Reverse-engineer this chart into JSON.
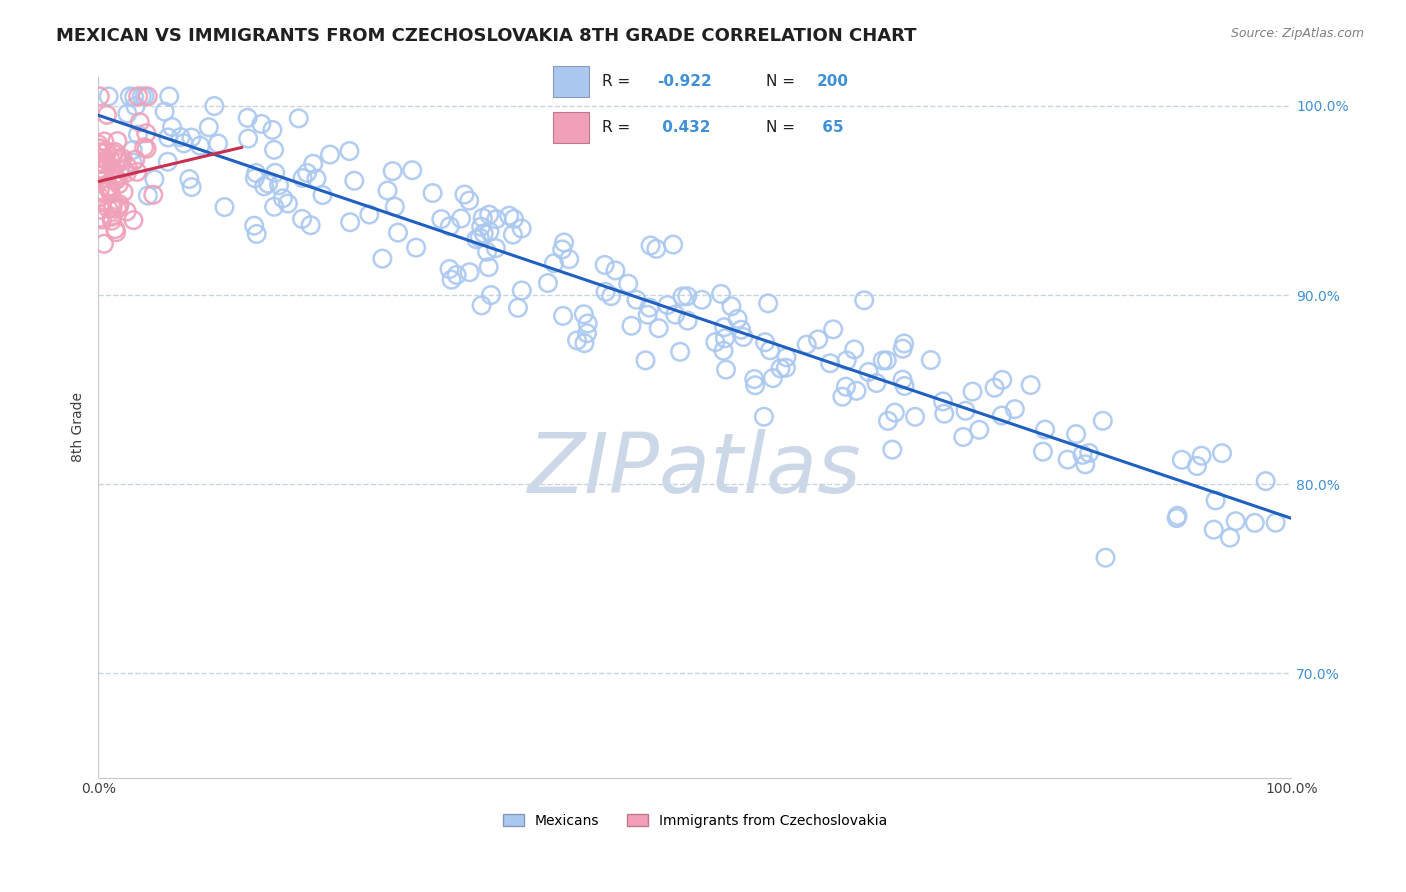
{
  "title": "MEXICAN VS IMMIGRANTS FROM CZECHOSLOVAKIA 8TH GRADE CORRELATION CHART",
  "source": "Source: ZipAtlas.com",
  "ylabel": "8th Grade",
  "watermark": "ZIPatlas",
  "xlim": [
    0.0,
    1.0
  ],
  "ylim": [
    0.645,
    1.015
  ],
  "yticks": [
    0.7,
    0.8,
    0.9,
    1.0
  ],
  "ytick_labels": [
    "70.0%",
    "80.0%",
    "90.0%",
    "100.0%"
  ],
  "xtick_labels": [
    "0.0%",
    "100.0%"
  ],
  "blue_color": "#aac8f0",
  "pink_color": "#f0a0b8",
  "blue_line_color": "#2060c0",
  "pink_line_color": "#c83050",
  "legend_label_blue": "Mexicans",
  "legend_label_pink": "Immigrants from Czechoslovakia",
  "title_fontsize": 13,
  "axis_label_fontsize": 10,
  "tick_fontsize": 10,
  "watermark_fontsize": 60,
  "watermark_color": "#ccd8e8",
  "background_color": "#ffffff",
  "grid_color": "#c8d4e0",
  "right_axis_color": "#4090d8",
  "blue_line_start_x": 0.0,
  "blue_line_start_y": 0.995,
  "blue_line_end_x": 1.0,
  "blue_line_end_y": 0.782,
  "pink_line_start_x": 0.0,
  "pink_line_start_y": 0.96,
  "pink_line_end_x": 0.12,
  "pink_line_end_y": 0.978
}
